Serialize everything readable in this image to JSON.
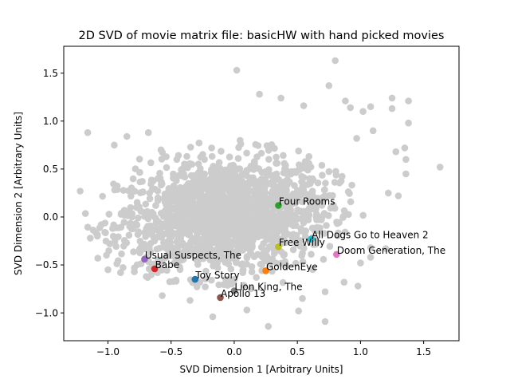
{
  "chart_data": {
    "type": "scatter",
    "title": "2D SVD of movie matrix file: basicHW with hand picked movies",
    "xlabel": "SVD Dimension 1 [Arbitrary Units]",
    "ylabel": "SVD Dimension 2 [Arbitrary Units]",
    "xlim": [
      -1.35,
      1.78
    ],
    "ylim": [
      -1.29,
      1.78
    ],
    "xticks": [
      "−1.0",
      "−0.5",
      "0.0",
      "0.5",
      "1.0",
      "1.5"
    ],
    "xtick_values": [
      -1.0,
      -0.5,
      0.0,
      0.5,
      1.0,
      1.5
    ],
    "yticks": [
      "−1.0",
      "−0.5",
      "0.0",
      "0.5",
      "1.0",
      "1.5"
    ],
    "ytick_values": [
      -1.0,
      -0.5,
      0.0,
      0.5,
      1.0,
      1.5
    ],
    "grid": false,
    "background_series": {
      "color": "#cccccc",
      "count": 1650,
      "outliers": [
        [
          -1.22,
          0.27
        ],
        [
          -1.16,
          0.88
        ],
        [
          -0.95,
          0.75
        ],
        [
          -0.85,
          0.84
        ],
        [
          -0.68,
          0.88
        ],
        [
          -0.58,
          0.7
        ],
        [
          0.02,
          1.53
        ],
        [
          0.2,
          1.28
        ],
        [
          0.37,
          1.24
        ],
        [
          0.55,
          1.16
        ],
        [
          0.8,
          1.63
        ],
        [
          0.75,
          1.37
        ],
        [
          0.88,
          1.21
        ],
        [
          0.92,
          1.14
        ],
        [
          1.02,
          1.1
        ],
        [
          1.08,
          1.15
        ],
        [
          1.25,
          1.24
        ],
        [
          1.38,
          1.21
        ],
        [
          1.25,
          1.13
        ],
        [
          1.38,
          0.98
        ],
        [
          1.63,
          0.52
        ],
        [
          1.28,
          0.68
        ],
        [
          1.35,
          0.72
        ],
        [
          1.36,
          0.6
        ],
        [
          1.36,
          0.45
        ],
        [
          1.3,
          0.22
        ],
        [
          1.22,
          0.25
        ],
        [
          0.97,
          0.82
        ],
        [
          1.1,
          0.9
        ],
        [
          -1.14,
          -0.22
        ],
        [
          -1.08,
          -0.43
        ],
        [
          -1.0,
          -0.55
        ],
        [
          -0.9,
          -0.58
        ],
        [
          -0.79,
          -0.53
        ],
        [
          -0.57,
          -0.82
        ],
        [
          -0.35,
          -0.87
        ],
        [
          -0.17,
          -1.04
        ],
        [
          0.1,
          -0.97
        ],
        [
          0.27,
          -1.14
        ],
        [
          0.51,
          -0.98
        ],
        [
          0.54,
          -0.85
        ],
        [
          0.72,
          -0.78
        ],
        [
          0.72,
          -1.09
        ],
        [
          0.87,
          -0.68
        ],
        [
          0.98,
          -0.72
        ],
        [
          1.0,
          -0.48
        ],
        [
          1.08,
          -0.42
        ],
        [
          1.08,
          -0.32
        ],
        [
          1.2,
          -0.33
        ]
      ]
    },
    "highlighted": [
      {
        "name": "Four Rooms",
        "x": 0.35,
        "y": 0.12,
        "color": "#2ca02c"
      },
      {
        "name": "All Dogs Go to Heaven 2",
        "x": 0.61,
        "y": -0.23,
        "color": "#17becf"
      },
      {
        "name": "Free Willy",
        "x": 0.35,
        "y": -0.31,
        "color": "#bcbd22"
      },
      {
        "name": "Doom Generation, The",
        "x": 0.81,
        "y": -0.39,
        "color": "#e377c2"
      },
      {
        "name": "Usual Suspects, The",
        "x": -0.71,
        "y": -0.44,
        "color": "#9467bd"
      },
      {
        "name": "Babe",
        "x": -0.63,
        "y": -0.54,
        "color": "#d62728"
      },
      {
        "name": "GoldenEye",
        "x": 0.25,
        "y": -0.56,
        "color": "#ff7f0e"
      },
      {
        "name": "Toy Story",
        "x": -0.31,
        "y": -0.65,
        "color": "#1f77b4"
      },
      {
        "name": "Lion King, The",
        "x": 0.0,
        "y": -0.77,
        "color": "#7f7f7f"
      },
      {
        "name": "Apollo 13",
        "x": -0.11,
        "y": -0.84,
        "color": "#8c564b"
      }
    ]
  }
}
